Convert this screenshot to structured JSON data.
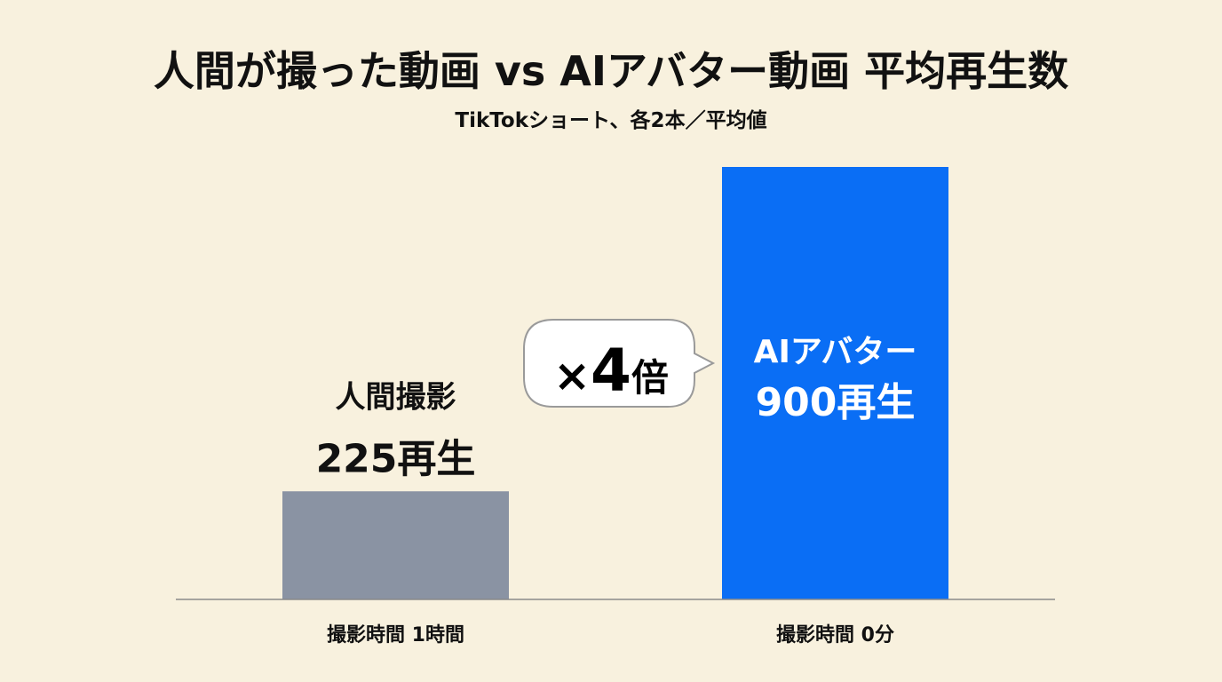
{
  "chart_data": {
    "type": "bar",
    "title": "人間が撮った動画 vs AIアバター動画 平均再生数",
    "subtitle": "TikTokショート、各2本／平均値",
    "categories": [
      "撮影時間 1時間",
      "撮影時間 0分"
    ],
    "values": [
      225,
      900
    ],
    "bar_labels": [
      {
        "name": "人間撮影",
        "value_text": "225再生"
      },
      {
        "name": "AIアバター",
        "value_text": "900再生"
      }
    ],
    "colors": [
      "#8a93a3",
      "#0a6ef5"
    ],
    "ylim": [
      0,
      900
    ],
    "grid": false,
    "callout": {
      "prefix": "×",
      "number": "4",
      "suffix": "倍"
    }
  }
}
